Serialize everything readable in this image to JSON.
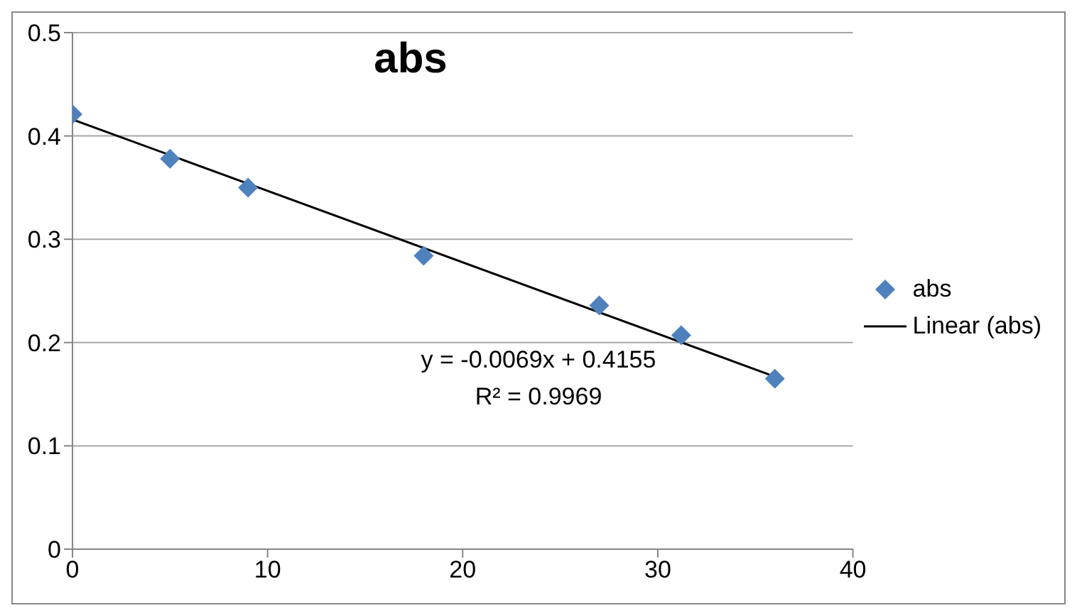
{
  "chart_data": {
    "type": "scatter",
    "title": "abs",
    "marker": "diamond",
    "grid": "y",
    "legend": "right",
    "xlim": [
      0,
      40
    ],
    "xticks": [
      0,
      10,
      20,
      30,
      40
    ],
    "ylim": [
      0,
      0.5
    ],
    "yticks": [
      0,
      0.1,
      0.2,
      0.3,
      0.4,
      0.5
    ],
    "series": [
      {
        "name": "abs",
        "color": "#4f81bd",
        "x": [
          0,
          5,
          9,
          18,
          27,
          31.2,
          36
        ],
        "values": [
          0.421,
          0.378,
          0.35,
          0.284,
          0.236,
          0.207,
          0.165
        ]
      },
      {
        "name": "Linear (abs)",
        "type": "line",
        "color": "#000000",
        "line_style": "solid",
        "marker": "none",
        "x": [
          0,
          36
        ],
        "values": [
          0.416,
          0.167
        ]
      }
    ],
    "annotations": [
      "y = -0.0069x + 0.4155",
      "R² = 0.9969"
    ]
  }
}
